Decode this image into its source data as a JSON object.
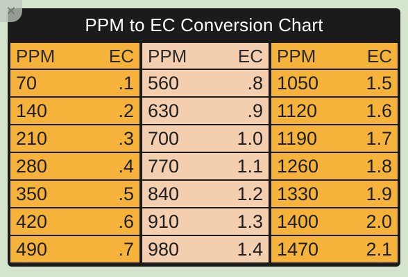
{
  "close_icon": "close-icon",
  "title": "PPM to EC Conversion Chart",
  "headers": [
    "PPM",
    "EC",
    "PPM",
    "EC",
    "PPM",
    "EC"
  ],
  "rows": [
    [
      "70",
      ".1",
      "560",
      ".8",
      "1050",
      "1.5"
    ],
    [
      "140",
      ".2",
      "630",
      ".9",
      "1120",
      "1.6"
    ],
    [
      "210",
      ".3",
      "700",
      "1.0",
      "1190",
      "1.7"
    ],
    [
      "280",
      ".4",
      "770",
      "1.1",
      "1260",
      "1.8"
    ],
    [
      "350",
      ".5",
      "840",
      "1.2",
      "1330",
      "1.9"
    ],
    [
      "420",
      ".6",
      "910",
      "1.3",
      "1400",
      "2.0"
    ],
    [
      "490",
      ".7",
      "980",
      "1.4",
      "1470",
      "2.1"
    ]
  ],
  "colors": {
    "orange": "#f5b33b",
    "peach": "#f3cfb0",
    "frame": "#1b1b1b",
    "background": "#d5e4cc"
  }
}
